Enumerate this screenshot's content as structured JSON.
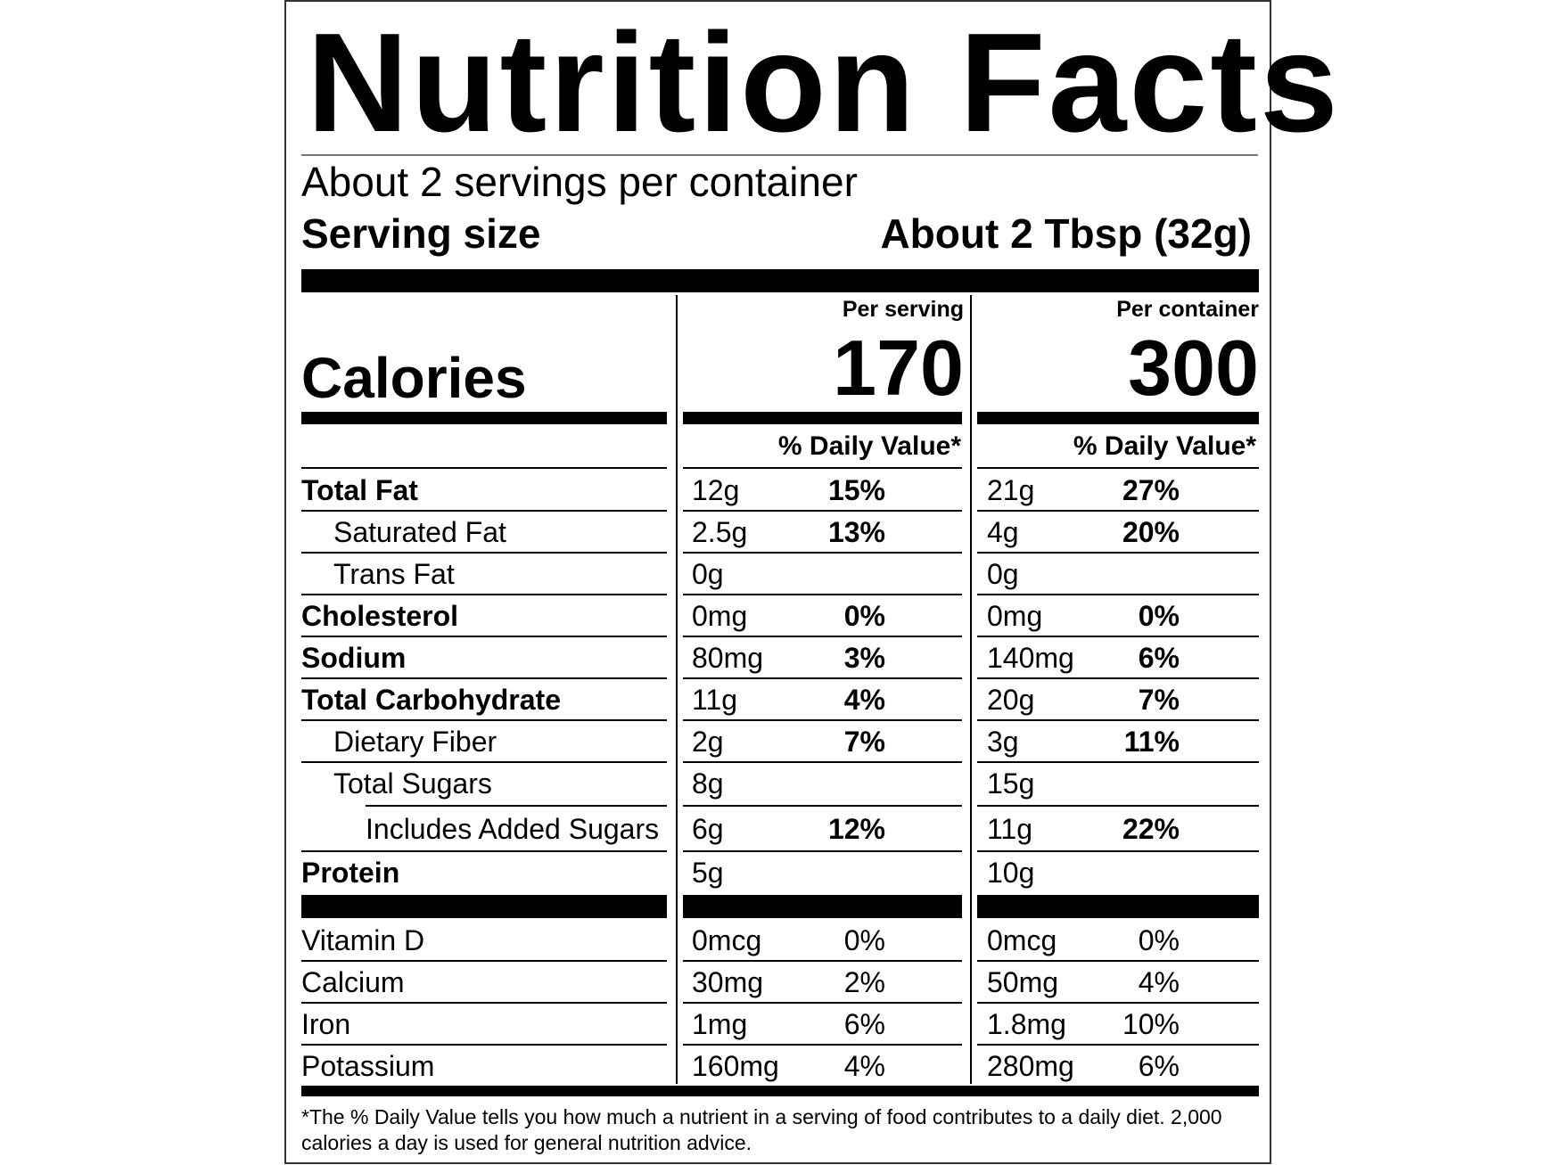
{
  "title": "Nutrition Facts",
  "servings_per_container": "About 2 servings per container",
  "serving_size": {
    "label": "Serving size",
    "value": "About 2 Tbsp (32g)"
  },
  "columns": {
    "per_serving": "Per serving",
    "per_container": "Per container"
  },
  "calories": {
    "label": "Calories",
    "per_serving": "170",
    "per_container": "300"
  },
  "daily_value_header": "% Daily Value*",
  "nutrients": [
    {
      "name": "Total Fat",
      "serving_amount": "12g",
      "serving_dv": "15%",
      "container_amount": "21g",
      "container_dv": "27%"
    },
    {
      "name": "Saturated Fat",
      "serving_amount": "2.5g",
      "serving_dv": "13%",
      "container_amount": "4g",
      "container_dv": "20%"
    },
    {
      "name": "Trans Fat",
      "serving_amount": "0g",
      "serving_dv": "",
      "container_amount": "0g",
      "container_dv": ""
    },
    {
      "name": "Cholesterol",
      "serving_amount": "0mg",
      "serving_dv": "0%",
      "container_amount": "0mg",
      "container_dv": "0%"
    },
    {
      "name": "Sodium",
      "serving_amount": "80mg",
      "serving_dv": "3%",
      "container_amount": "140mg",
      "container_dv": "6%"
    },
    {
      "name": "Total Carbohydrate",
      "serving_amount": "11g",
      "serving_dv": "4%",
      "container_amount": "20g",
      "container_dv": "7%"
    },
    {
      "name": "Dietary Fiber",
      "serving_amount": "2g",
      "serving_dv": "7%",
      "container_amount": "3g",
      "container_dv": "11%"
    },
    {
      "name": "Total Sugars",
      "serving_amount": "8g",
      "serving_dv": "",
      "container_amount": "15g",
      "container_dv": ""
    },
    {
      "name": "Includes Added Sugars",
      "serving_amount": "6g",
      "serving_dv": "12%",
      "container_amount": "11g",
      "container_dv": "22%"
    },
    {
      "name": "Protein",
      "serving_amount": "5g",
      "serving_dv": "",
      "container_amount": "10g",
      "container_dv": ""
    }
  ],
  "vitamins": [
    {
      "name": "Vitamin D",
      "serving_amount": "0mcg",
      "serving_dv": "0%",
      "container_amount": "0mcg",
      "container_dv": "0%"
    },
    {
      "name": "Calcium",
      "serving_amount": "30mg",
      "serving_dv": "2%",
      "container_amount": "50mg",
      "container_dv": "4%"
    },
    {
      "name": "Iron",
      "serving_amount": "1mg",
      "serving_dv": "6%",
      "container_amount": "1.8mg",
      "container_dv": "10%"
    },
    {
      "name": "Potassium",
      "serving_amount": "160mg",
      "serving_dv": "4%",
      "container_amount": "280mg",
      "container_dv": "6%"
    }
  ],
  "footnote": "*The % Daily Value tells you how much a nutrient in a serving of food contributes to a daily diet. 2,000 calories a day is used for general nutrition advice."
}
